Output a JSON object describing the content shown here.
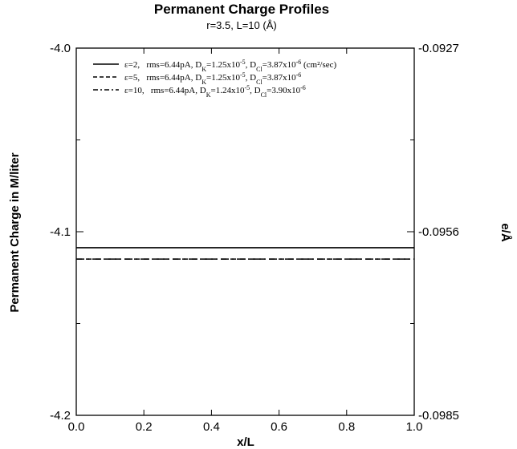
{
  "chart_data": {
    "type": "line",
    "title": "Permanent Charge Profiles",
    "subtitle": "r=3.5, L=10 (Å)",
    "xlabel": "x/L",
    "ylabel": "Permanent Charge in M/liter",
    "y2label": "e/Å",
    "xlim": [
      0.0,
      1.0
    ],
    "ylim": [
      -4.2,
      -4.0
    ],
    "x_ticks": [
      "0.0",
      "0.2",
      "0.4",
      "0.6",
      "0.8",
      "1.0"
    ],
    "y_ticks": [
      "-4.2",
      "-4.1",
      "-4.0"
    ],
    "y2_ticks": [
      "-0.0985",
      "-0.0956",
      "-0.0927"
    ],
    "grid": false,
    "legend_position": "top-left",
    "series": [
      {
        "name": "ε=2,   rms=6.44pA, D_K=1.25x10^-5, D_Cl=3.87x10^-6 (cm²/sec)",
        "legend": {
          "eps": "ε=2,",
          "rms": "rms=6.44pA,",
          "dk": "1.25x10",
          "dk_exp": "-5",
          "dcl": "3.87x10",
          "dcl_exp": "-6",
          "unit": " (cm²/sec)"
        },
        "dash": "solid",
        "x": [
          0.0,
          1.0
        ],
        "y": [
          -4.1087,
          -4.1087
        ]
      },
      {
        "name": "ε=5,   rms=6.44pA, D_K=1.25x10^-5, D_Cl=3.87x10^-6",
        "legend": {
          "eps": "ε=5,",
          "rms": "rms=6.44pA,",
          "dk": "1.25x10",
          "dk_exp": "-5",
          "dcl": "3.87x10",
          "dcl_exp": "-6",
          "unit": ""
        },
        "dash": "dashed",
        "x": [
          0.0,
          1.0
        ],
        "y": [
          -4.1149,
          -4.1149
        ]
      },
      {
        "name": "ε=10, rms=6.44pA, D_K=1.24x10^-5, D_Cl=3.90x10^-6",
        "legend": {
          "eps": "ε=10,",
          "rms": "rms=6.44pA,",
          "dk": "1.24x10",
          "dk_exp": "-5",
          "dcl": "3.90x10",
          "dcl_exp": "-6",
          "unit": ""
        },
        "dash": "dashdot",
        "x": [
          0.0,
          1.0
        ],
        "y": [
          -4.1149,
          -4.1149
        ]
      }
    ]
  }
}
